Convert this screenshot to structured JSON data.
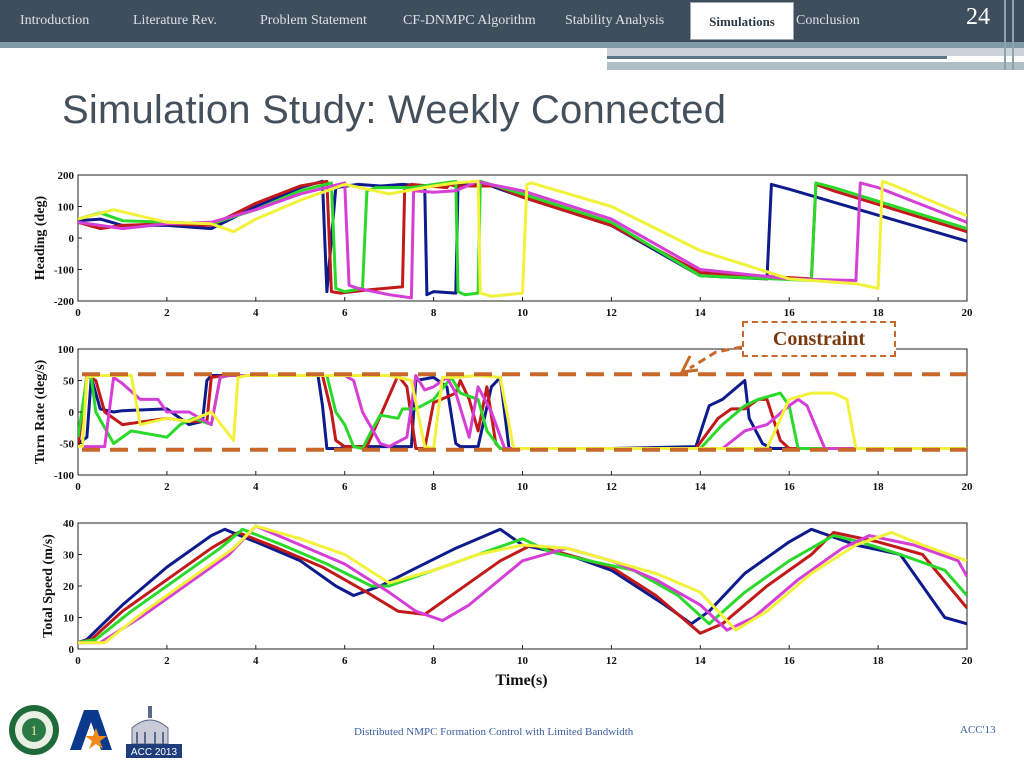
{
  "nav": {
    "items": [
      {
        "label": "Introduction"
      },
      {
        "label": "Literature Rev."
      },
      {
        "label": "Problem Statement"
      },
      {
        "label": "CF-DNMPC Algorithm"
      },
      {
        "label": "Stability Analysis"
      },
      {
        "label": "Simulations",
        "active": true
      },
      {
        "label": "Conclusion"
      }
    ],
    "slide_number": "24"
  },
  "title": "Simulation Study: Weekly Connected",
  "constraint_label": "Constraint",
  "footer": {
    "text": "Distributed NMPC Formation Control with Limited Bandwidth",
    "conference": "ACC'13",
    "logo_text": "ACC 2013"
  },
  "colors": {
    "nav_bg": "#3f4e5c",
    "series": [
      "#0d1b8c",
      "#c21a1a",
      "#2bd92b",
      "#d63fd6",
      "#f2f23a"
    ],
    "constraint": "#c8692a"
  },
  "chart_data": [
    {
      "type": "line",
      "ylabel": "Heading (deg)",
      "xlabel": "",
      "xlim": [
        0,
        20
      ],
      "ylim": [
        -200,
        200
      ],
      "xticks": [
        0,
        2,
        4,
        6,
        8,
        10,
        12,
        14,
        16,
        18,
        20
      ],
      "yticks": [
        200,
        100,
        0,
        -100,
        -200
      ],
      "series": [
        {
          "color": "#0d1b8c",
          "x": [
            0,
            0.5,
            1,
            2,
            3,
            4,
            5,
            5.5,
            5.55,
            5.6,
            5.8,
            6.3,
            6.8,
            7.3,
            7.8,
            7.85,
            8.0,
            8.5,
            8.55,
            8.7,
            9.2,
            10,
            12,
            14,
            15.5,
            15.6,
            16,
            20
          ],
          "y": [
            55,
            60,
            40,
            40,
            30,
            100,
            160,
            180,
            0,
            -170,
            160,
            170,
            165,
            170,
            165,
            -180,
            -170,
            -175,
            170,
            175,
            170,
            130,
            40,
            -120,
            -130,
            170,
            155,
            -10
          ]
        },
        {
          "color": "#c21a1a",
          "x": [
            0,
            0.5,
            1,
            2,
            3,
            4,
            5,
            5.6,
            5.7,
            5.9,
            6.5,
            7.3,
            7.35,
            7.5,
            8.3,
            8.35,
            8.5,
            9.4,
            10,
            12,
            14,
            16.5,
            16.6,
            17,
            20
          ],
          "y": [
            50,
            30,
            40,
            45,
            40,
            110,
            165,
            180,
            -170,
            -175,
            -165,
            -155,
            160,
            170,
            160,
            170,
            165,
            165,
            130,
            40,
            -110,
            -130,
            170,
            150,
            20
          ]
        },
        {
          "color": "#2bd92b",
          "x": [
            0,
            0.5,
            1,
            2,
            3,
            4,
            5,
            5.7,
            5.8,
            6.0,
            6.4,
            6.5,
            6.7,
            7.5,
            8.5,
            8.55,
            8.7,
            9.0,
            9.05,
            10,
            12,
            14,
            16.5,
            16.6,
            17,
            20
          ],
          "y": [
            60,
            80,
            55,
            50,
            45,
            90,
            150,
            175,
            -160,
            -170,
            -160,
            150,
            160,
            160,
            180,
            -170,
            -180,
            -175,
            180,
            140,
            50,
            -120,
            -135,
            175,
            160,
            30
          ]
        },
        {
          "color": "#d63fd6",
          "x": [
            0,
            0.5,
            1,
            2,
            3,
            4,
            5,
            6,
            6.1,
            6.3,
            7.0,
            7.5,
            7.55,
            8.0,
            8.5,
            9.0,
            9.1,
            10,
            12,
            14,
            16,
            17.5,
            17.6,
            18,
            20
          ],
          "y": [
            50,
            40,
            30,
            45,
            50,
            90,
            140,
            175,
            -150,
            -160,
            -180,
            -190,
            150,
            145,
            150,
            180,
            175,
            150,
            60,
            -100,
            -130,
            -135,
            175,
            160,
            50
          ]
        },
        {
          "color": "#f2f23a",
          "x": [
            0,
            0.4,
            0.8,
            2,
            3,
            3.5,
            4,
            5,
            6,
            7,
            8,
            8.5,
            9.0,
            9.05,
            9.3,
            10,
            10.1,
            10.2,
            12,
            14,
            16,
            17.5,
            18.0,
            18.1,
            18.3,
            20
          ],
          "y": [
            60,
            75,
            90,
            50,
            45,
            20,
            60,
            120,
            170,
            140,
            165,
            175,
            180,
            -175,
            -185,
            -175,
            170,
            175,
            100,
            -40,
            -130,
            -145,
            -160,
            180,
            170,
            70
          ]
        }
      ]
    },
    {
      "type": "line",
      "ylabel": "Turn Rate (deg/s)",
      "xlabel": "",
      "xlim": [
        0,
        20
      ],
      "ylim": [
        -100,
        100
      ],
      "xticks": [
        0,
        2,
        4,
        6,
        8,
        10,
        12,
        14,
        16,
        18,
        20
      ],
      "yticks": [
        100,
        50,
        0,
        -50,
        -100
      ],
      "constraint_levels": [
        60,
        -60
      ],
      "series": [
        {
          "color": "#0d1b8c",
          "x": [
            0,
            0.2,
            0.3,
            0.5,
            0.8,
            1,
            2,
            2.5,
            2.8,
            2.9,
            3.0,
            5.4,
            5.5,
            5.6,
            5.9,
            6.0,
            6.5,
            7.5,
            7.6,
            8.0,
            8.3,
            8.5,
            8.6,
            9.0,
            9.3,
            9.5,
            9.7,
            10,
            12,
            13.9,
            14.2,
            14.5,
            15.0,
            15.1,
            15.4,
            15.6,
            16,
            17,
            20
          ],
          "y": [
            -50,
            -40,
            55,
            5,
            0,
            2,
            5,
            -20,
            -15,
            50,
            58,
            58,
            10,
            -58,
            -58,
            -55,
            -55,
            -55,
            50,
            55,
            40,
            -50,
            -55,
            -55,
            40,
            55,
            -60,
            -58,
            -58,
            -55,
            10,
            20,
            50,
            -10,
            -50,
            -58,
            -58,
            -58,
            -58
          ]
        },
        {
          "color": "#c21a1a",
          "x": [
            0,
            0.2,
            0.4,
            0.6,
            1.0,
            2.0,
            2.5,
            2.9,
            3.0,
            3.3,
            3.5,
            5.5,
            5.7,
            5.8,
            6.0,
            6.5,
            7.2,
            7.4,
            7.6,
            7.8,
            8.0,
            8.5,
            8.6,
            8.8,
            9.0,
            9.2,
            9.4,
            9.5,
            10,
            13.9,
            14.4,
            14.7,
            15.0,
            15.3,
            15.5,
            15.8,
            16,
            20
          ],
          "y": [
            -55,
            58,
            50,
            0,
            -20,
            -10,
            -15,
            -15,
            55,
            58,
            58,
            58,
            0,
            -45,
            -55,
            -55,
            58,
            40,
            -58,
            -58,
            15,
            30,
            50,
            20,
            -30,
            40,
            -50,
            -58,
            -58,
            -58,
            -10,
            5,
            5,
            20,
            20,
            -45,
            -58,
            -58
          ]
        },
        {
          "color": "#2bd92b",
          "x": [
            0,
            0.2,
            0.3,
            0.4,
            0.8,
            1.2,
            2.0,
            2.3,
            2.6,
            3.0,
            3.2,
            3.4,
            5.6,
            5.8,
            6.0,
            6.2,
            6.4,
            6.6,
            6.8,
            7.2,
            7.3,
            7.6,
            8.0,
            8.4,
            8.6,
            9.0,
            9.2,
            9.5,
            9.6,
            10,
            14,
            14.5,
            15.0,
            15.3,
            15.8,
            16.0,
            16.2,
            20
          ],
          "y": [
            -40,
            55,
            55,
            0,
            -50,
            -30,
            -40,
            -20,
            -10,
            -20,
            55,
            58,
            58,
            0,
            -20,
            -55,
            -58,
            -30,
            -5,
            -10,
            5,
            5,
            20,
            55,
            30,
            20,
            -30,
            -58,
            -58,
            -58,
            -58,
            -20,
            10,
            20,
            30,
            10,
            -58,
            -58
          ]
        },
        {
          "color": "#d63fd6",
          "x": [
            0,
            0.3,
            0.6,
            0.8,
            1.0,
            1.4,
            1.8,
            2.0,
            2.5,
            3.0,
            3.2,
            3.4,
            6.0,
            6.2,
            6.4,
            6.8,
            7.0,
            7.4,
            7.6,
            7.8,
            8.0,
            8.3,
            8.5,
            8.8,
            9.0,
            9.3,
            9.6,
            10,
            14.5,
            15.0,
            15.5,
            16.0,
            16.2,
            16.4,
            16.8,
            17.0,
            18,
            20
          ],
          "y": [
            -55,
            -55,
            -55,
            55,
            45,
            20,
            20,
            0,
            0,
            -20,
            55,
            58,
            58,
            50,
            0,
            -50,
            -55,
            -40,
            58,
            35,
            40,
            55,
            30,
            -40,
            40,
            0,
            -58,
            -58,
            -58,
            -30,
            -20,
            10,
            20,
            10,
            -58,
            -58,
            -58,
            -58
          ]
        },
        {
          "color": "#f2f23a",
          "x": [
            0,
            0.1,
            0.2,
            0.4,
            0.8,
            1.2,
            1.4,
            2.0,
            2.5,
            3.0,
            3.5,
            3.6,
            3.8,
            7.0,
            7.2,
            7.5,
            7.8,
            8.0,
            8.2,
            8.5,
            9.0,
            9.5,
            9.8,
            10,
            14,
            15.5,
            16.0,
            16.5,
            17.0,
            17.3,
            17.5,
            20
          ],
          "y": [
            -55,
            -55,
            55,
            58,
            58,
            58,
            -20,
            -10,
            -15,
            0,
            -45,
            55,
            58,
            58,
            55,
            50,
            -55,
            -58,
            55,
            55,
            58,
            55,
            -58,
            -58,
            -58,
            -58,
            20,
            30,
            30,
            20,
            -58,
            -58
          ]
        }
      ]
    },
    {
      "type": "line",
      "ylabel": "Total Speed (m/s)",
      "xlabel": "Time(s)",
      "xlim": [
        0,
        20
      ],
      "ylim": [
        0,
        40
      ],
      "xticks": [
        0,
        2,
        4,
        6,
        8,
        10,
        12,
        14,
        16,
        18,
        20
      ],
      "yticks": [
        40,
        30,
        20,
        10,
        0
      ],
      "series": [
        {
          "color": "#0d1b8c",
          "x": [
            0,
            0.2,
            1,
            2,
            3,
            3.3,
            4,
            5,
            5.8,
            6.2,
            6.8,
            7.5,
            8.5,
            9.5,
            10,
            11,
            12,
            13.2,
            13.8,
            14.2,
            15,
            16,
            16.5,
            17.5,
            18.5,
            19.5,
            20
          ],
          "y": [
            2,
            3,
            14,
            26,
            36,
            38,
            34,
            28,
            20,
            17,
            20,
            25,
            32,
            38,
            33,
            30,
            25,
            14,
            8,
            12,
            24,
            34,
            38,
            33,
            30,
            10,
            8
          ]
        },
        {
          "color": "#c21a1a",
          "x": [
            0,
            0.3,
            1,
            2,
            3,
            3.6,
            4.5,
            5.5,
            6.5,
            7.2,
            7.8,
            8.5,
            9.5,
            10.2,
            11,
            12,
            13,
            14,
            14.5,
            15.5,
            16.5,
            17,
            18,
            19,
            20
          ],
          "y": [
            2,
            3,
            12,
            22,
            32,
            37,
            32,
            26,
            18,
            12,
            11,
            18,
            28,
            33,
            30,
            26,
            17,
            5,
            8,
            20,
            30,
            37,
            34,
            30,
            13
          ]
        },
        {
          "color": "#2bd92b",
          "x": [
            0,
            0.4,
            1.2,
            2.2,
            3.2,
            3.7,
            4.6,
            5.6,
            6.6,
            7.0,
            8.0,
            9.0,
            10.0,
            10.6,
            11.5,
            12.5,
            13.5,
            14.2,
            15.0,
            16.0,
            17.0,
            17.6,
            18.5,
            19.5,
            20
          ],
          "y": [
            2,
            3,
            12,
            22,
            32,
            38,
            33,
            27,
            20,
            20,
            25,
            30,
            35,
            31,
            28,
            25,
            17,
            8,
            18,
            28,
            36,
            34,
            30,
            25,
            17
          ]
        },
        {
          "color": "#d63fd6",
          "x": [
            0,
            0.5,
            1.4,
            2.4,
            3.4,
            4.0,
            5.0,
            6.0,
            7.0,
            7.6,
            8.2,
            8.8,
            10.0,
            11.0,
            12.0,
            13.0,
            14.0,
            14.6,
            15.2,
            16.2,
            17.2,
            17.8,
            18.8,
            19.8,
            20
          ],
          "y": [
            2,
            2,
            10,
            20,
            30,
            39,
            33,
            27,
            18,
            12,
            9,
            14,
            28,
            32,
            28,
            22,
            14,
            6,
            10,
            22,
            32,
            36,
            33,
            28,
            23
          ]
        },
        {
          "color": "#f2f23a",
          "x": [
            0,
            0.6,
            1.5,
            2.5,
            3.5,
            4.0,
            5.0,
            6.0,
            7.0,
            8.0,
            9.0,
            10.0,
            11.0,
            12.0,
            13.0,
            14.0,
            14.8,
            15.5,
            16.5,
            17.5,
            18.3,
            19.0,
            20
          ],
          "y": [
            2,
            2,
            12,
            22,
            32,
            39,
            35,
            30,
            21,
            25,
            30,
            33,
            32,
            28,
            24,
            18,
            6,
            12,
            24,
            33,
            37,
            33,
            28
          ]
        }
      ]
    }
  ]
}
